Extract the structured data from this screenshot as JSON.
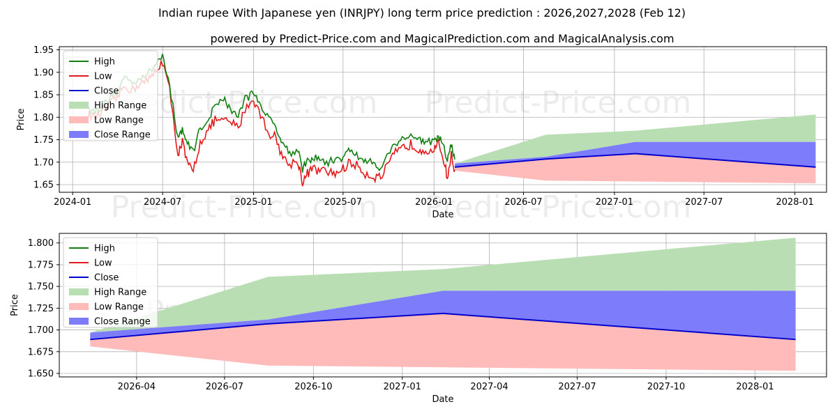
{
  "header": {
    "title": "Indian rupee With Japanese yen (INRJPY) long term price prediction : 2026,2027,2028 (Feb 12)",
    "subtitle": "powered by Predict-Price.com and MagicalPrediction.com and MagicalAnalysis.com"
  },
  "watermark": "Predict-Price.com",
  "legend": {
    "entries": [
      {
        "key": "high",
        "label": "High",
        "kind": "line",
        "color": "#118011"
      },
      {
        "key": "low",
        "label": "Low",
        "kind": "line",
        "color": "#e31a1c"
      },
      {
        "key": "close",
        "label": "Close",
        "kind": "line",
        "color": "#0000cc"
      },
      {
        "key": "high_range",
        "label": "High Range",
        "kind": "patch",
        "color": "#b9deb4"
      },
      {
        "key": "low_range",
        "label": "Low Range",
        "kind": "patch",
        "color": "#ffbaba"
      },
      {
        "key": "close_range",
        "label": "Close Range",
        "kind": "patch",
        "color": "#7d7dfb"
      }
    ]
  },
  "chart_data": [
    {
      "type": "line",
      "title": "Indian rupee With Japanese yen (INRJPY) long term price prediction : 2026,2027,2028 (Feb 12)",
      "xlabel": "Date",
      "ylabel": "Price",
      "xlim": [
        "2023-12-05",
        "2028-03-05"
      ],
      "ylim": [
        1.633,
        1.957
      ],
      "grid": true,
      "legend_position": "upper-left",
      "x_ticks": [
        "2024-01",
        "2024-07",
        "2025-01",
        "2025-07",
        "2026-01",
        "2026-07",
        "2027-01",
        "2027-07",
        "2028-01"
      ],
      "y_ticks": [
        "1.65",
        "1.70",
        "1.75",
        "1.80",
        "1.85",
        "1.90",
        "1.95"
      ],
      "history": {
        "dates": [
          "2024-02-01",
          "2024-02-15",
          "2024-03-01",
          "2024-03-15",
          "2024-04-01",
          "2024-04-15",
          "2024-05-01",
          "2024-05-15",
          "2024-06-01",
          "2024-06-15",
          "2024-07-01",
          "2024-07-15",
          "2024-08-01",
          "2024-08-10",
          "2024-08-20",
          "2024-09-01",
          "2024-09-15",
          "2024-10-01",
          "2024-10-15",
          "2024-11-01",
          "2024-11-15",
          "2024-12-01",
          "2024-12-15",
          "2025-01-01",
          "2025-01-15",
          "2025-02-01",
          "2025-02-15",
          "2025-03-01",
          "2025-03-15",
          "2025-04-01",
          "2025-04-10",
          "2025-04-20",
          "2025-05-01",
          "2025-05-15",
          "2025-06-01",
          "2025-06-15",
          "2025-07-01",
          "2025-07-15",
          "2025-08-01",
          "2025-08-15",
          "2025-09-01",
          "2025-09-15",
          "2025-10-01",
          "2025-10-15",
          "2025-11-01",
          "2025-11-15",
          "2025-12-01",
          "2025-12-15",
          "2026-01-01",
          "2026-01-10",
          "2026-01-20",
          "2026-01-28",
          "2026-02-05",
          "2026-02-12"
        ],
        "high": [
          1.82,
          1.812,
          1.825,
          1.84,
          1.86,
          1.89,
          1.875,
          1.89,
          1.895,
          1.915,
          1.942,
          1.87,
          1.752,
          1.775,
          1.74,
          1.725,
          1.775,
          1.795,
          1.825,
          1.845,
          1.815,
          1.805,
          1.84,
          1.855,
          1.83,
          1.795,
          1.78,
          1.745,
          1.72,
          1.728,
          1.685,
          1.7,
          1.712,
          1.705,
          1.698,
          1.708,
          1.71,
          1.728,
          1.712,
          1.702,
          1.698,
          1.688,
          1.72,
          1.742,
          1.755,
          1.76,
          1.75,
          1.748,
          1.742,
          1.758,
          1.735,
          1.704,
          1.74,
          1.706
        ],
        "low": [
          1.805,
          1.8,
          1.81,
          1.825,
          1.845,
          1.87,
          1.86,
          1.875,
          1.88,
          1.9,
          1.925,
          1.86,
          1.72,
          1.745,
          1.695,
          1.68,
          1.745,
          1.77,
          1.795,
          1.79,
          1.79,
          1.775,
          1.82,
          1.84,
          1.805,
          1.765,
          1.755,
          1.71,
          1.695,
          1.703,
          1.655,
          1.675,
          1.685,
          1.68,
          1.678,
          1.675,
          1.685,
          1.7,
          1.69,
          1.675,
          1.668,
          1.665,
          1.695,
          1.72,
          1.732,
          1.74,
          1.73,
          1.728,
          1.728,
          1.74,
          1.71,
          1.665,
          1.715,
          1.683
        ]
      },
      "forecast": {
        "dates": [
          "2026-02-12",
          "2026-08-15",
          "2027-02-12",
          "2028-02-12"
        ],
        "close": [
          1.689,
          1.707,
          1.719,
          1.689
        ],
        "high_range_top": [
          1.697,
          1.761,
          1.77,
          1.806
        ],
        "close_range_top": [
          1.697,
          1.712,
          1.745,
          1.745
        ],
        "low_range_bottom": [
          1.681,
          1.659,
          1.657,
          1.653
        ]
      }
    },
    {
      "type": "line",
      "xlabel": "Date",
      "ylabel": "Price",
      "xlim": [
        "2026-01-11",
        "2028-03-15"
      ],
      "ylim": [
        1.646,
        1.811
      ],
      "grid": true,
      "legend_position": "upper-left",
      "x_ticks": [
        "2026-04",
        "2026-07",
        "2026-10",
        "2027-01",
        "2027-04",
        "2027-07",
        "2027-10",
        "2028-01"
      ],
      "y_ticks": [
        "1.650",
        "1.675",
        "1.700",
        "1.725",
        "1.750",
        "1.775",
        "1.800"
      ],
      "forecast": {
        "dates": [
          "2026-02-12",
          "2026-08-15",
          "2027-02-12",
          "2028-02-12"
        ],
        "close": [
          1.689,
          1.707,
          1.719,
          1.689
        ],
        "high_range_top": [
          1.697,
          1.761,
          1.77,
          1.806
        ],
        "close_range_top": [
          1.697,
          1.712,
          1.745,
          1.745
        ],
        "low_range_bottom": [
          1.681,
          1.659,
          1.657,
          1.653
        ]
      }
    }
  ]
}
